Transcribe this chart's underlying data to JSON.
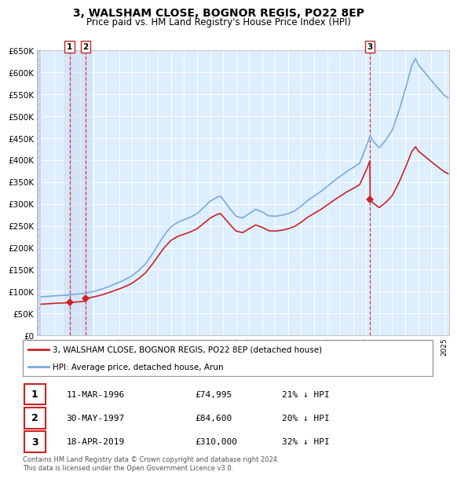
{
  "title": "3, WALSHAM CLOSE, BOGNOR REGIS, PO22 8EP",
  "subtitle": "Price paid vs. HM Land Registry's House Price Index (HPI)",
  "property_label": "3, WALSHAM CLOSE, BOGNOR REGIS, PO22 8EP (detached house)",
  "hpi_label": "HPI: Average price, detached house, Arun",
  "footer": "Contains HM Land Registry data © Crown copyright and database right 2024.\nThis data is licensed under the Open Government Licence v3.0.",
  "transactions": [
    {
      "num": 1,
      "date": "11-MAR-1996",
      "price": 74995,
      "pct": "21%",
      "direction": "↓"
    },
    {
      "num": 2,
      "date": "30-MAY-1997",
      "price": 84600,
      "pct": "20%",
      "direction": "↓"
    },
    {
      "num": 3,
      "date": "18-APR-2019",
      "price": 310000,
      "pct": "32%",
      "direction": "↓"
    }
  ],
  "transaction_years": [
    1996.19,
    1997.41,
    2019.29
  ],
  "transaction_prices": [
    74995,
    84600,
    310000
  ],
  "ylim": [
    0,
    650000
  ],
  "yticks": [
    0,
    50000,
    100000,
    150000,
    200000,
    250000,
    300000,
    350000,
    400000,
    450000,
    500000,
    550000,
    600000,
    650000
  ],
  "xlim_start": 1993.7,
  "xlim_end": 2025.4,
  "hpi_color": "#7aaadd",
  "price_color": "#cc2222",
  "plot_bg_color": "#ddeeff",
  "hatch_bg_color": "#ccdaee"
}
